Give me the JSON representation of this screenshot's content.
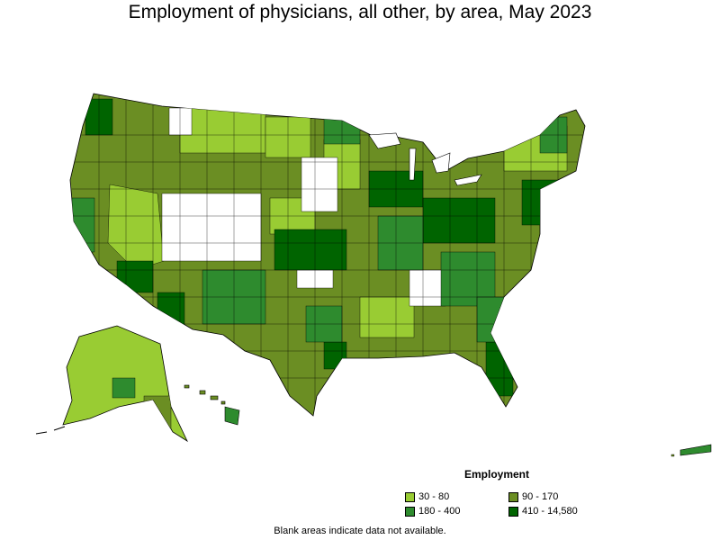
{
  "title": "Employment of physicians, all other, by area, May 2023",
  "legend": {
    "title": "Employment",
    "items": [
      {
        "label": "30 - 80",
        "color": "#99cc33"
      },
      {
        "label": "90 - 170",
        "color": "#6b8e23"
      },
      {
        "label": "180 - 400",
        "color": "#2e8b2e"
      },
      {
        "label": "410 - 14,580",
        "color": "#006400"
      }
    ]
  },
  "note": "Blank areas indicate data not available."
}
